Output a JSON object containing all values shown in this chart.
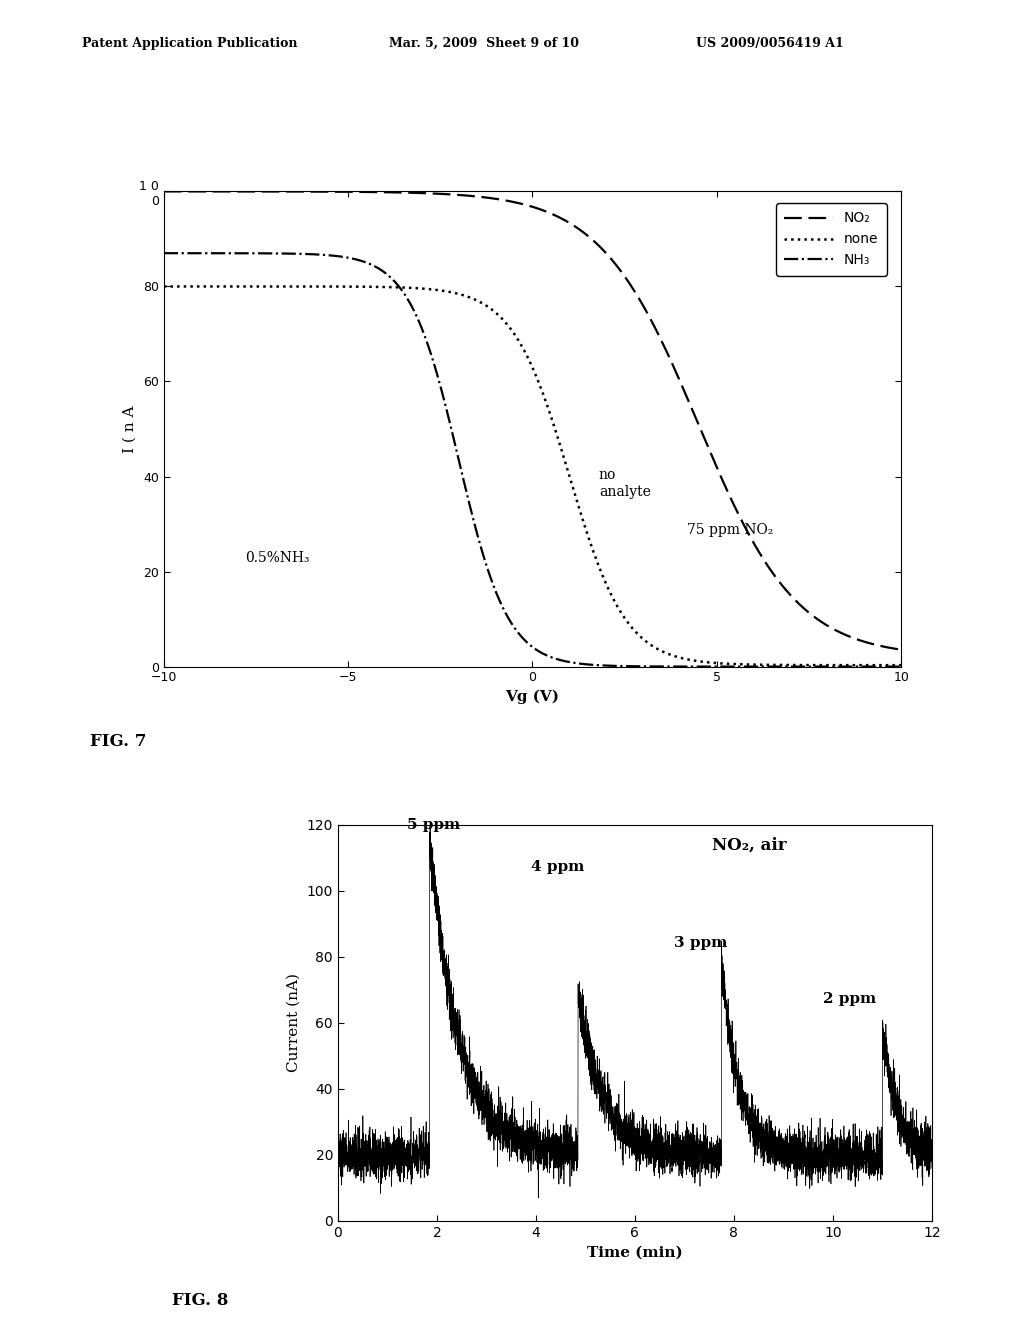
{
  "header_left": "Patent Application Publication",
  "header_mid": "Mar. 5, 2009  Sheet 9 of 10",
  "header_right": "US 2009/0056419 A1",
  "fig7": {
    "title": "FIG. 7",
    "xlabel": "Vg (V)",
    "ylabel": "I ( n A",
    "xlim": [
      -10,
      10
    ],
    "ylim": [
      0,
      100
    ],
    "yticks": [
      0,
      20,
      40,
      60,
      80,
      100
    ],
    "ytick_labels": [
      "0",
      "20",
      "40",
      "60",
      "80",
      "1 0\n0"
    ],
    "xticks": [
      -10,
      -5,
      0,
      5,
      10
    ],
    "annotation_NO2": "75 ppm NO₂",
    "annotation_none": "no\nanalyte",
    "annotation_NH3": "0.5%NH₃",
    "legend_NO2": "NO₂",
    "legend_none": "none",
    "legend_NH3": "NH₃"
  },
  "fig8": {
    "title": "FIG. 8",
    "xlabel": "Time (min)",
    "ylabel": "Current (nA)",
    "xlim": [
      0,
      12
    ],
    "ylim": [
      0,
      120
    ],
    "yticks": [
      0,
      20,
      40,
      60,
      80,
      100,
      120
    ],
    "xticks": [
      0,
      2,
      4,
      6,
      8,
      10,
      12
    ],
    "annotation_title": "NO₂, air",
    "ann_5ppm": "5 ppm",
    "ann_4ppm": "4 ppm",
    "ann_3ppm": "3 ppm",
    "ann_2ppm": "2 ppm"
  }
}
